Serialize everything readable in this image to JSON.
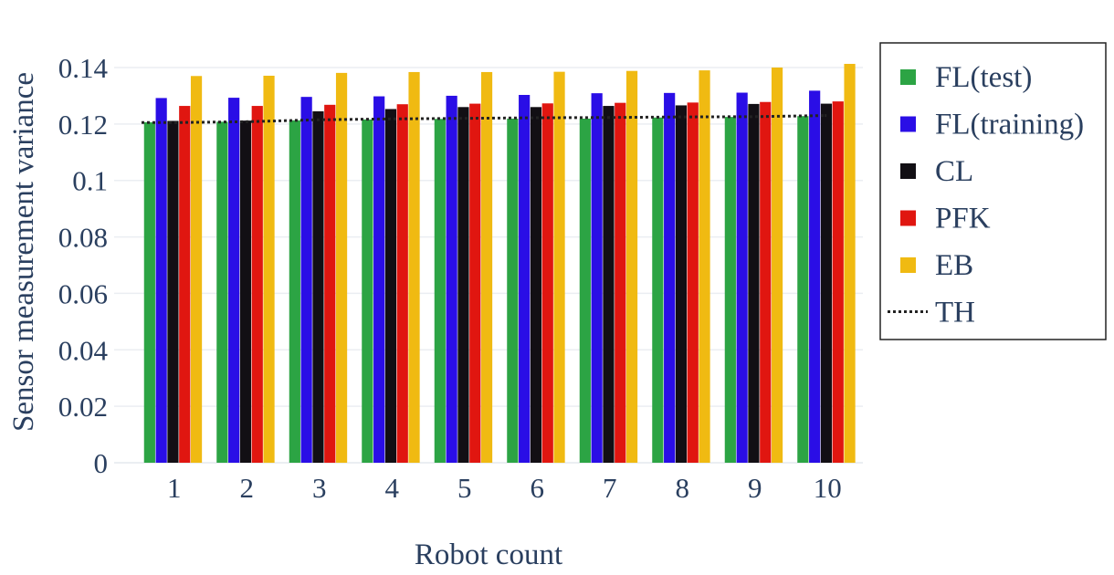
{
  "chart_data": {
    "type": "bar",
    "categories": [
      "1",
      "2",
      "3",
      "4",
      "5",
      "6",
      "7",
      "8",
      "9",
      "10"
    ],
    "xlabel": "Robot count",
    "ylabel": "Sensor measurement variance",
    "ylim": [
      0,
      0.14
    ],
    "yticks": [
      "0",
      "0.02",
      "0.04",
      "0.06",
      "0.08",
      "0.1",
      "0.12",
      "0.14"
    ],
    "grid": true,
    "legend_position": "right",
    "series": [
      {
        "name": "FL(test)",
        "color": "#2ca444",
        "values": [
          0.1206,
          0.1208,
          0.1213,
          0.1216,
          0.1218,
          0.1219,
          0.1219,
          0.1223,
          0.1225,
          0.1228
        ]
      },
      {
        "name": "FL(training)",
        "color": "#2a0ee6",
        "values": [
          0.1292,
          0.1293,
          0.1296,
          0.1298,
          0.13,
          0.1303,
          0.1309,
          0.131,
          0.1311,
          0.1318
        ]
      },
      {
        "name": "CL",
        "color": "#120f14",
        "values": [
          0.1211,
          0.1212,
          0.1245,
          0.1253,
          0.126,
          0.126,
          0.1264,
          0.1266,
          0.1271,
          0.1272
        ]
      },
      {
        "name": "PFK",
        "color": "#e01610",
        "values": [
          0.1264,
          0.1264,
          0.1268,
          0.127,
          0.1272,
          0.1273,
          0.1275,
          0.1276,
          0.1278,
          0.128
        ]
      },
      {
        "name": "EB",
        "color": "#f0ba12",
        "values": [
          0.137,
          0.1371,
          0.1381,
          0.1384,
          0.1384,
          0.1385,
          0.1388,
          0.139,
          0.14,
          0.1413
        ]
      },
      {
        "name": "TH",
        "type": "line",
        "style": "dotted",
        "color": "#222222",
        "values": [
          0.1205,
          0.1208,
          0.1215,
          0.1218,
          0.122,
          0.1222,
          0.1223,
          0.1225,
          0.1226,
          0.123
        ]
      }
    ]
  }
}
